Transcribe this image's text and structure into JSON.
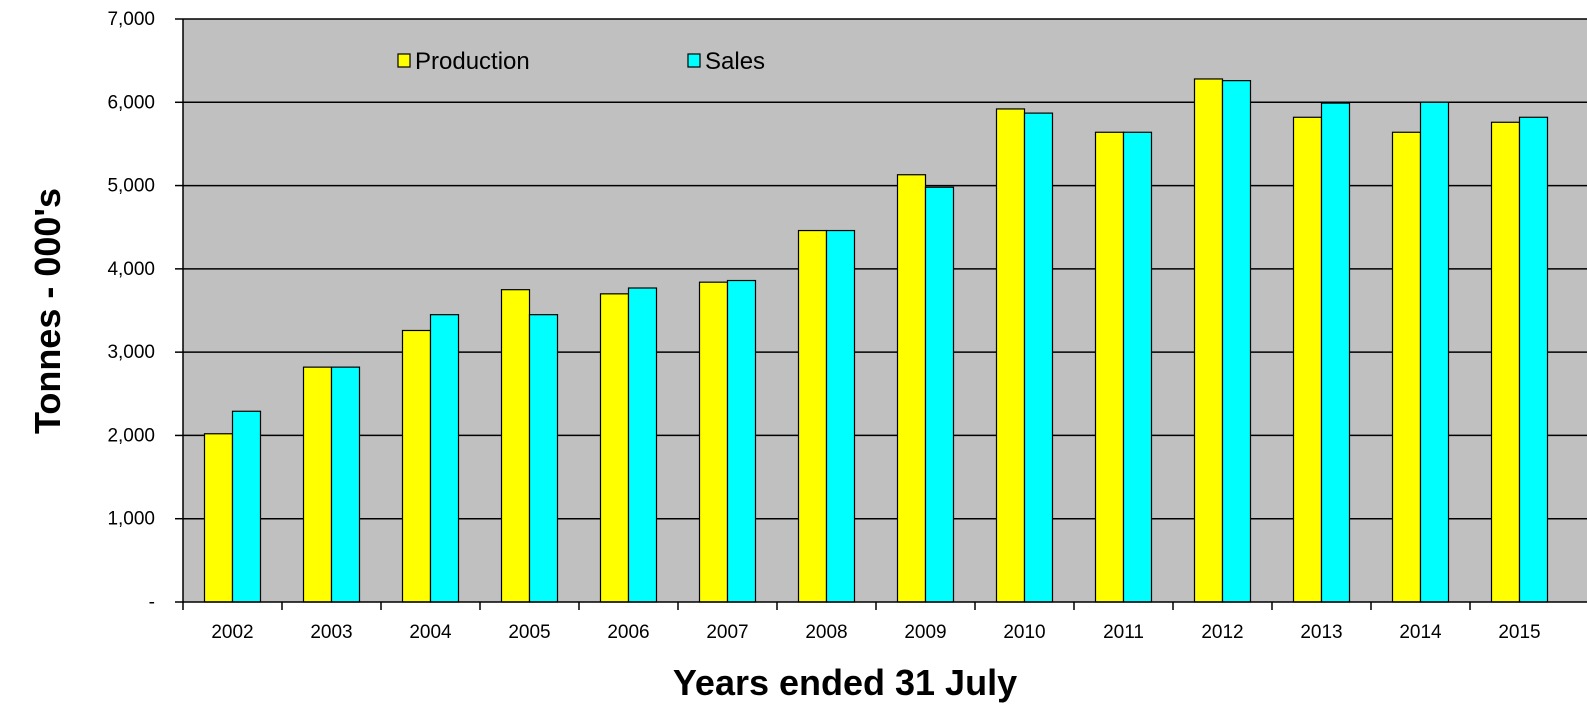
{
  "chart_data": {
    "type": "bar",
    "xlabel": "Years ended 31 July",
    "ylabel": "Tonnes - 000's",
    "ylim": [
      0,
      7000
    ],
    "yticks": [
      {
        "value": 0,
        "label": "-"
      },
      {
        "value": 1000,
        "label": "1,000"
      },
      {
        "value": 2000,
        "label": "2,000"
      },
      {
        "value": 3000,
        "label": "3,000"
      },
      {
        "value": 4000,
        "label": "4,000"
      },
      {
        "value": 5000,
        "label": "5,000"
      },
      {
        "value": 6000,
        "label": "6,000"
      },
      {
        "value": 7000,
        "label": "7,000"
      }
    ],
    "grid": true,
    "legend_position": "top",
    "categories": [
      "2002",
      "2003",
      "2004",
      "2005",
      "2006",
      "2007",
      "2008",
      "2009",
      "2010",
      "2011",
      "2012",
      "2013",
      "2014",
      "2015"
    ],
    "series": [
      {
        "name": "Production",
        "color": "#FFFF00",
        "values": [
          2020,
          2820,
          3260,
          3750,
          3700,
          3840,
          4460,
          5130,
          5920,
          5640,
          6280,
          5820,
          5640,
          5760
        ]
      },
      {
        "name": "Sales",
        "color": "#00FFFF",
        "values": [
          2290,
          2820,
          3450,
          3450,
          3770,
          3860,
          4460,
          4980,
          5870,
          5640,
          6260,
          5990,
          6000,
          5820
        ]
      }
    ]
  }
}
